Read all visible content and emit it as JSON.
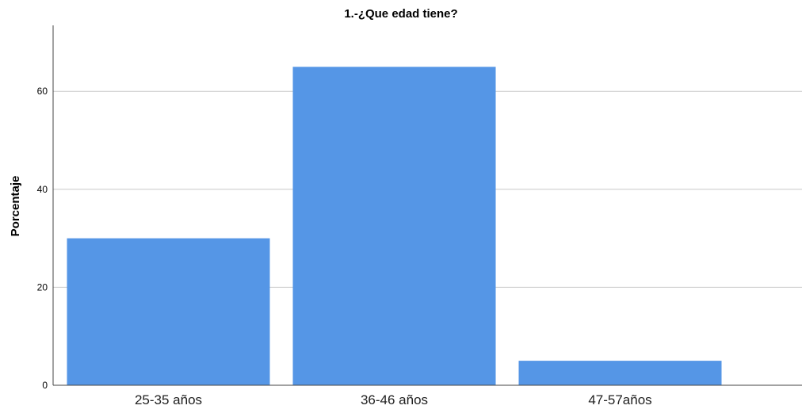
{
  "chart_data": {
    "type": "bar",
    "title": "1.-¿Que edad tiene?",
    "xlabel": "",
    "ylabel": "Porcentaje",
    "categories": [
      "25-35 años",
      "36-46 años",
      "47-57años"
    ],
    "values": [
      30,
      65,
      5
    ],
    "ylim": [
      0,
      73
    ],
    "yticks": [
      0,
      20,
      40,
      60
    ],
    "grid": true,
    "bar_color": "#5596e6"
  }
}
